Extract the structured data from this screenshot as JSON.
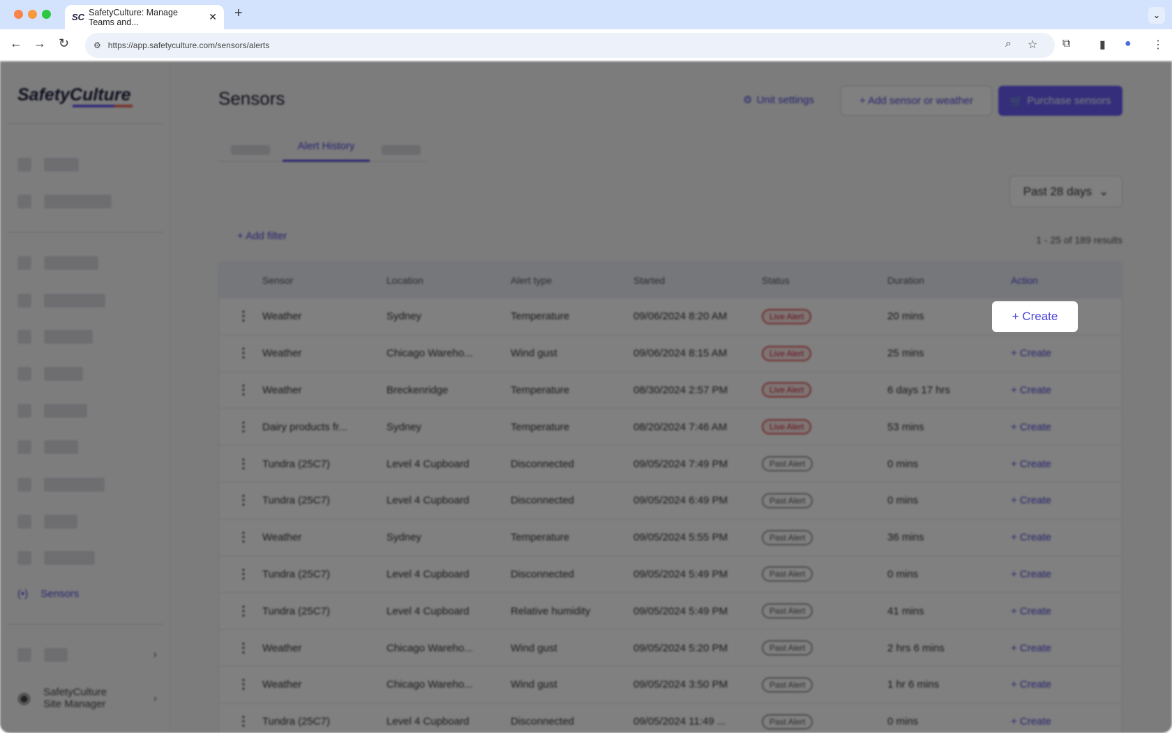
{
  "browser": {
    "tab_title": "SafetyCulture: Manage Teams and...",
    "tab_logo": "SC",
    "url": "https://app.safetyculture.com/sensors/alerts"
  },
  "sidebar": {
    "brand": "SafetyCulture",
    "active_item": "Sensors",
    "bottom_org_line1": "SafetyCulture",
    "bottom_org_line2": "Site Manager"
  },
  "header": {
    "title": "Sensors",
    "unit_settings": "Unit settings",
    "add_sensor": "+ Add sensor or weather",
    "purchase": "Purchase sensors"
  },
  "tabs": {
    "active": "Alert History"
  },
  "filters": {
    "range": "Past 28 days",
    "add_filter": "+ Add filter",
    "results": "1 - 25 of 189 results"
  },
  "table": {
    "columns": [
      "Sensor",
      "Location",
      "Alert type",
      "Started",
      "Status",
      "Duration",
      "Action"
    ],
    "rows": [
      {
        "sensor": "Weather",
        "location": "Sydney",
        "type": "Temperature",
        "started": "09/06/2024 8:20 AM",
        "status": "Live Alert",
        "duration": "20 mins",
        "action": "+ Create"
      },
      {
        "sensor": "Weather",
        "location": "Chicago Wareho...",
        "type": "Wind gust",
        "started": "09/06/2024 8:15 AM",
        "status": "Live Alert",
        "duration": "25 mins",
        "action": "+ Create"
      },
      {
        "sensor": "Weather",
        "location": "Breckenridge",
        "type": "Temperature",
        "started": "08/30/2024 2:57 PM",
        "status": "Live Alert",
        "duration": "6 days 17 hrs",
        "action": "+ Create"
      },
      {
        "sensor": "Dairy products fr...",
        "location": "Sydney",
        "type": "Temperature",
        "started": "08/20/2024 7:46 AM",
        "status": "Live Alert",
        "duration": "53 mins",
        "action": "+ Create"
      },
      {
        "sensor": "Tundra (25C7)",
        "location": "Level 4 Cupboard",
        "type": "Disconnected",
        "started": "09/05/2024 7:49 PM",
        "status": "Past Alert",
        "duration": "0 mins",
        "action": "+ Create"
      },
      {
        "sensor": "Tundra (25C7)",
        "location": "Level 4 Cupboard",
        "type": "Disconnected",
        "started": "09/05/2024 6:49 PM",
        "status": "Past Alert",
        "duration": "0 mins",
        "action": "+ Create"
      },
      {
        "sensor": "Weather",
        "location": "Sydney",
        "type": "Temperature",
        "started": "09/05/2024 5:55 PM",
        "status": "Past Alert",
        "duration": "36 mins",
        "action": "+ Create"
      },
      {
        "sensor": "Tundra (25C7)",
        "location": "Level 4 Cupboard",
        "type": "Disconnected",
        "started": "09/05/2024 5:49 PM",
        "status": "Past Alert",
        "duration": "0 mins",
        "action": "+ Create"
      },
      {
        "sensor": "Tundra (25C7)",
        "location": "Level 4 Cupboard",
        "type": "Relative humidity",
        "started": "09/05/2024 5:49 PM",
        "status": "Past Alert",
        "duration": "41 mins",
        "action": "+ Create"
      },
      {
        "sensor": "Weather",
        "location": "Chicago Wareho...",
        "type": "Wind gust",
        "started": "09/05/2024 5:20 PM",
        "status": "Past Alert",
        "duration": "2 hrs 6 mins",
        "action": "+ Create"
      },
      {
        "sensor": "Weather",
        "location": "Chicago Wareho...",
        "type": "Wind gust",
        "started": "09/05/2024 3:50 PM",
        "status": "Past Alert",
        "duration": "1 hr 6 mins",
        "action": "+ Create"
      },
      {
        "sensor": "Tundra (25C7)",
        "location": "Level 4 Cupboard",
        "type": "Disconnected",
        "started": "09/05/2024 11:49 ...",
        "status": "Past Alert",
        "duration": "0 mins",
        "action": "+ Create"
      }
    ]
  },
  "highlight": {
    "label": "+ Create"
  },
  "colors": {
    "accent": "#4b45d8",
    "primary_button": "#675df5",
    "live_alert": "#e35a5a"
  }
}
